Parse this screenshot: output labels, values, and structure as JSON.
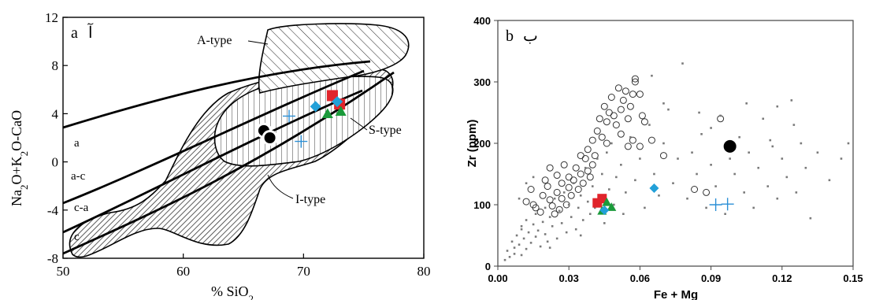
{
  "colors": {
    "red": "#e0242b",
    "green": "#1a9a3a",
    "cyan": "#22a0d8",
    "blue_cross": "#2b8fd6",
    "black": "#000000",
    "gray_points": "#7a7a7a"
  },
  "chart_data": [
    {
      "type": "scatter",
      "panel_letter": "a",
      "panel_letter_fa": "آ",
      "xlabel_text": "% SiO",
      "xlabel_sub": "2",
      "ylabel_parts": [
        "Na",
        "2",
        "O+K",
        "2",
        "O-CaO"
      ],
      "xlim": [
        50,
        80
      ],
      "ylim": [
        -8,
        12
      ],
      "xticks": [
        "50",
        "60",
        "70",
        "80"
      ],
      "yticks": [
        "-8",
        "-4",
        "0",
        "4",
        "8",
        "12"
      ],
      "field_labels": [
        "A-type",
        "S-type",
        "I-type"
      ],
      "line_labels": [
        "a",
        "a-c",
        "c-a",
        "c"
      ],
      "series": [
        {
          "marker": "square",
          "color": "red",
          "points": [
            [
              72.4,
              5.5
            ],
            [
              73.0,
              4.8
            ]
          ]
        },
        {
          "marker": "diamond",
          "color": "cyan",
          "points": [
            [
              71.0,
              4.6
            ],
            [
              72.8,
              5.0
            ]
          ]
        },
        {
          "marker": "triangle",
          "color": "green",
          "points": [
            [
              72.0,
              4.0
            ],
            [
              73.1,
              4.2
            ]
          ]
        },
        {
          "marker": "cross",
          "color": "blue_cross",
          "points": [
            [
              68.8,
              3.8
            ],
            [
              69.8,
              1.7
            ]
          ]
        },
        {
          "marker": "circle",
          "color": "black",
          "points": [
            [
              66.7,
              2.6
            ],
            [
              67.2,
              2.0
            ]
          ]
        }
      ]
    },
    {
      "type": "scatter",
      "panel_letter": "b",
      "panel_letter_fa": "ب",
      "xlabel": "Fe + Mg",
      "ylabel": "Zr (ppm)",
      "xlim": [
        0,
        0.15
      ],
      "ylim": [
        0,
        400
      ],
      "xticks": [
        "0.00",
        "0.03",
        "0.06",
        "0.09",
        "0.12",
        "0.15"
      ],
      "yticks": [
        "0",
        "100",
        "200",
        "300",
        "400"
      ],
      "series": [
        {
          "marker": "open-circle",
          "color": "black",
          "points": [
            [
              0.012,
              105
            ],
            [
              0.014,
              125
            ],
            [
              0.015,
              100
            ],
            [
              0.016,
              95
            ],
            [
              0.018,
              88
            ],
            [
              0.019,
              115
            ],
            [
              0.02,
              140
            ],
            [
              0.021,
              130
            ],
            [
              0.022,
              108
            ],
            [
              0.022,
              160
            ],
            [
              0.023,
              98
            ],
            [
              0.024,
              85
            ],
            [
              0.025,
              120
            ],
            [
              0.025,
              148
            ],
            [
              0.026,
              92
            ],
            [
              0.027,
              110
            ],
            [
              0.027,
              135
            ],
            [
              0.028,
              165
            ],
            [
              0.029,
              100
            ],
            [
              0.03,
              128
            ],
            [
              0.03,
              145
            ],
            [
              0.031,
              115
            ],
            [
              0.032,
              140
            ],
            [
              0.033,
              160
            ],
            [
              0.034,
              125
            ],
            [
              0.035,
              150
            ],
            [
              0.035,
              180
            ],
            [
              0.036,
              135
            ],
            [
              0.037,
              175
            ],
            [
              0.038,
              190
            ],
            [
              0.038,
              155
            ],
            [
              0.039,
              145
            ],
            [
              0.04,
              165
            ],
            [
              0.04,
              205
            ],
            [
              0.041,
              180
            ],
            [
              0.042,
              220
            ],
            [
              0.043,
              240
            ],
            [
              0.044,
              210
            ],
            [
              0.045,
              260
            ],
            [
              0.046,
              200
            ],
            [
              0.046,
              235
            ],
            [
              0.047,
              250
            ],
            [
              0.048,
              275
            ],
            [
              0.049,
              245
            ],
            [
              0.05,
              230
            ],
            [
              0.051,
              290
            ],
            [
              0.052,
              255
            ],
            [
              0.052,
              215
            ],
            [
              0.053,
              270
            ],
            [
              0.054,
              285
            ],
            [
              0.055,
              240
            ],
            [
              0.055,
              195
            ],
            [
              0.056,
              260
            ],
            [
              0.057,
              280
            ],
            [
              0.058,
              300
            ],
            [
              0.058,
              305
            ],
            [
              0.06,
              280
            ],
            [
              0.062,
              235
            ],
            [
              0.065,
              205
            ],
            [
              0.07,
              180
            ],
            [
              0.083,
              125
            ],
            [
              0.088,
              120
            ],
            [
              0.094,
              240
            ],
            [
              0.057,
              205
            ],
            [
              0.06,
              195
            ],
            [
              0.061,
              245
            ]
          ]
        },
        {
          "marker": "dot",
          "color": "gray_points",
          "points": [
            [
              0.003,
              10
            ],
            [
              0.004,
              25
            ],
            [
              0.005,
              15
            ],
            [
              0.006,
              40
            ],
            [
              0.007,
              30
            ],
            [
              0.007,
              20
            ],
            [
              0.008,
              50
            ],
            [
              0.009,
              35
            ],
            [
              0.01,
              18
            ],
            [
              0.01,
              60
            ],
            [
              0.011,
              45
            ],
            [
              0.012,
              28
            ],
            [
              0.012,
              75
            ],
            [
              0.013,
              55
            ],
            [
              0.014,
              38
            ],
            [
              0.015,
              68
            ],
            [
              0.016,
              48
            ],
            [
              0.016,
              85
            ],
            [
              0.017,
              58
            ],
            [
              0.018,
              32
            ],
            [
              0.019,
              72
            ],
            [
              0.02,
              52
            ],
            [
              0.02,
              95
            ],
            [
              0.021,
              40
            ],
            [
              0.022,
              80
            ],
            [
              0.023,
              65
            ],
            [
              0.024,
              110
            ],
            [
              0.025,
              45
            ],
            [
              0.026,
              90
            ],
            [
              0.027,
              70
            ],
            [
              0.028,
              120
            ],
            [
              0.029,
              55
            ],
            [
              0.03,
              100
            ],
            [
              0.031,
              80
            ],
            [
              0.032,
              135
            ],
            [
              0.033,
              60
            ],
            [
              0.034,
              95
            ],
            [
              0.035,
              115
            ],
            [
              0.036,
              75
            ],
            [
              0.037,
              160
            ],
            [
              0.038,
              105
            ],
            [
              0.039,
              85
            ],
            [
              0.04,
              130
            ],
            [
              0.041,
              95
            ],
            [
              0.042,
              175
            ],
            [
              0.043,
              115
            ],
            [
              0.044,
              150
            ],
            [
              0.045,
              70
            ],
            [
              0.046,
              185
            ],
            [
              0.047,
              125
            ],
            [
              0.048,
              200
            ],
            [
              0.049,
              100
            ],
            [
              0.05,
              145
            ],
            [
              0.052,
              165
            ],
            [
              0.054,
              120
            ],
            [
              0.056,
              210
            ],
            [
              0.058,
              140
            ],
            [
              0.06,
              175
            ],
            [
              0.062,
              95
            ],
            [
              0.064,
              230
            ],
            [
              0.066,
              150
            ],
            [
              0.068,
              115
            ],
            [
              0.07,
              200
            ],
            [
              0.072,
              255
            ],
            [
              0.074,
              135
            ],
            [
              0.076,
              175
            ],
            [
              0.078,
              330
            ],
            [
              0.08,
              110
            ],
            [
              0.082,
              185
            ],
            [
              0.084,
              150
            ],
            [
              0.086,
              215
            ],
            [
              0.088,
              95
            ],
            [
              0.09,
              165
            ],
            [
              0.092,
              130
            ],
            [
              0.094,
              245
            ],
            [
              0.096,
              85
            ],
            [
              0.098,
              175
            ],
            [
              0.1,
              150
            ],
            [
              0.102,
              210
            ],
            [
              0.104,
              120
            ],
            [
              0.106,
              185
            ],
            [
              0.108,
              95
            ],
            [
              0.11,
              160
            ],
            [
              0.112,
              240
            ],
            [
              0.114,
              130
            ],
            [
              0.116,
              195
            ],
            [
              0.118,
              110
            ],
            [
              0.12,
              175
            ],
            [
              0.122,
              145
            ],
            [
              0.124,
              270
            ],
            [
              0.126,
              120
            ],
            [
              0.128,
              200
            ],
            [
              0.13,
              160
            ],
            [
              0.132,
              78
            ],
            [
              0.135,
              185
            ],
            [
              0.14,
              140
            ],
            [
              0.145,
              175
            ],
            [
              0.148,
              200
            ],
            [
              0.015,
              145
            ],
            [
              0.012,
              135
            ],
            [
              0.009,
              110
            ],
            [
              0.065,
              310
            ],
            [
              0.085,
              250
            ],
            [
              0.105,
              265
            ],
            [
              0.115,
              205
            ],
            [
              0.01,
              65
            ],
            [
              0.022,
              30
            ],
            [
              0.035,
              50
            ],
            [
              0.053,
              85
            ],
            [
              0.07,
              265
            ],
            [
              0.09,
              225
            ],
            [
              0.118,
              260
            ],
            [
              0.125,
              230
            ]
          ]
        },
        {
          "marker": "square",
          "color": "red",
          "points": [
            [
              0.042,
              103
            ],
            [
              0.044,
              110
            ]
          ]
        },
        {
          "marker": "triangle",
          "color": "green",
          "points": [
            [
              0.044,
              90
            ],
            [
              0.048,
              96
            ],
            [
              0.046,
              104
            ]
          ]
        },
        {
          "marker": "diamond",
          "color": "cyan",
          "points": [
            [
              0.045,
              91
            ],
            [
              0.066,
              127
            ]
          ]
        },
        {
          "marker": "cross",
          "color": "blue_cross",
          "points": [
            [
              0.092,
              100
            ],
            [
              0.097,
              101
            ]
          ]
        },
        {
          "marker": "filled-circle",
          "color": "black",
          "points": [
            [
              0.098,
              195
            ]
          ]
        }
      ]
    }
  ]
}
